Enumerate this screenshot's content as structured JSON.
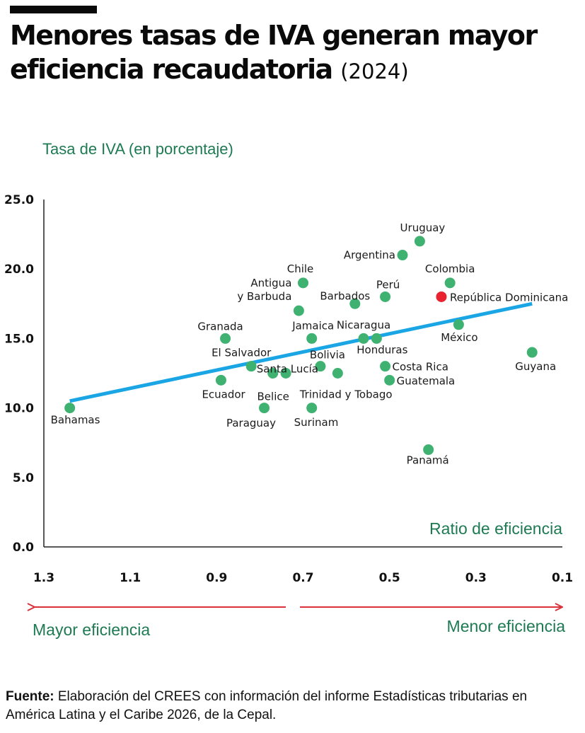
{
  "header": {
    "title": "Menores tasas de IVA generan mayor eficiencia recaudatoria",
    "year": "(2024)"
  },
  "chart_data": {
    "type": "scatter",
    "title": "Menores tasas de IVA generan mayor eficiencia recaudatoria",
    "subtitle": "(2024)",
    "ylabel": "Tasa de IVA (en porcentaje)",
    "xlabel": "Ratio de eficiencia",
    "xlim": [
      1.3,
      0.1
    ],
    "ylim": [
      0,
      25
    ],
    "x_reversed": true,
    "x_ticks": [
      "1.3",
      "1.1",
      "0.9",
      "0.7",
      "0.5",
      "0.3",
      "0.1"
    ],
    "y_ticks": [
      "0.0",
      "5.0",
      "10.0",
      "15.0",
      "20.0",
      "25.0"
    ],
    "grid": false,
    "colors": {
      "point": "#3fb271",
      "highlight": "#e8232f",
      "trend": "#1aa6e4",
      "arrow": "#d9323c"
    },
    "points": [
      {
        "label": "Uruguay",
        "x": 0.43,
        "y": 22.0
      },
      {
        "label": "Argentina",
        "x": 0.47,
        "y": 21.0
      },
      {
        "label": "Colombia",
        "x": 0.36,
        "y": 19.0
      },
      {
        "label": "Chile",
        "x": 0.7,
        "y": 19.0
      },
      {
        "label": "Perú",
        "x": 0.51,
        "y": 18.0
      },
      {
        "label": "República Dominicana",
        "x": 0.38,
        "y": 18.0,
        "highlight": true
      },
      {
        "label": "Barbados",
        "x": 0.58,
        "y": 17.5
      },
      {
        "label": "Antigua\ny Barbuda",
        "x": 0.71,
        "y": 17.0
      },
      {
        "label": "Granada",
        "x": 0.88,
        "y": 15.0
      },
      {
        "label": "Jamaica",
        "x": 0.68,
        "y": 15.0
      },
      {
        "label": "Nicaragua",
        "x": 0.56,
        "y": 15.0
      },
      {
        "label": "Honduras",
        "x": 0.53,
        "y": 15.0
      },
      {
        "label": "México",
        "x": 0.34,
        "y": 16.0
      },
      {
        "label": "Guyana",
        "x": 0.17,
        "y": 14.0
      },
      {
        "label": "El Salvador",
        "x": 0.82,
        "y": 13.0
      },
      {
        "label": "Bolivia",
        "x": 0.66,
        "y": 13.0
      },
      {
        "label": "Costa Rica",
        "x": 0.51,
        "y": 13.0
      },
      {
        "label": "Santa Lucía",
        "x": 0.77,
        "y": 12.5
      },
      {
        "label": "",
        "x": 0.74,
        "y": 12.5
      },
      {
        "label": "",
        "x": 0.62,
        "y": 12.5
      },
      {
        "label": "Guatemala",
        "x": 0.5,
        "y": 12.0
      },
      {
        "label": "Ecuador",
        "x": 0.89,
        "y": 12.0
      },
      {
        "label": "Belice",
        "x": 0.79,
        "y": 10.0
      },
      {
        "label": "Trinidad y Tobago",
        "x": 0.68,
        "y": 10.0
      },
      {
        "label": "Bahamas",
        "x": 1.24,
        "y": 10.0
      },
      {
        "label": "Panamá",
        "x": 0.41,
        "y": 7.0
      }
    ],
    "trend": {
      "x1": 1.24,
      "y1": 10.5,
      "x2": 0.17,
      "y2": 17.5
    },
    "extra_labels": [
      "Paraguay",
      "Surinam"
    ],
    "directions": {
      "left": "Mayor eficiencia",
      "right": "Menor eficiencia"
    }
  },
  "footer": {
    "source_label": "Fuente:",
    "source_text": " Elaboración del CREES con información del informe Estadísticas tributarias en América Latina y el Caribe 2026, de la Cepal."
  }
}
